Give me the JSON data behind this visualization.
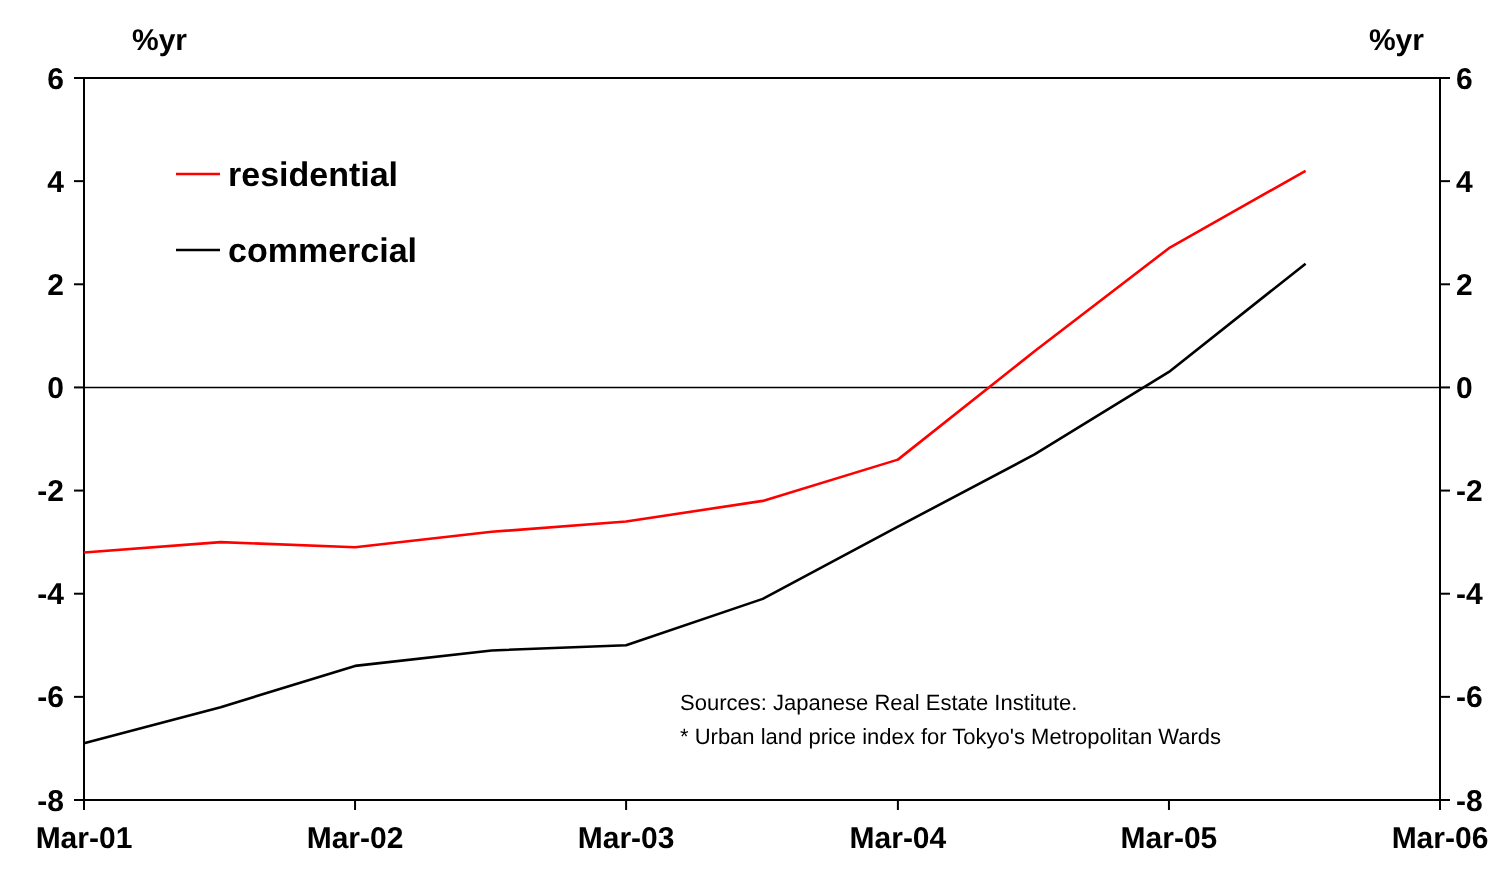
{
  "chart_data": {
    "type": "line",
    "ylabel": "%yr",
    "y2label": "%yr",
    "x": [
      "2001-03",
      "2001-09",
      "2002-03",
      "2002-09",
      "2003-03",
      "2003-09",
      "2004-03",
      "2004-09",
      "2005-03",
      "2005-09"
    ],
    "series": [
      {
        "name": "residential",
        "color": "#ff0000",
        "values": [
          -3.2,
          -3.0,
          -3.1,
          -2.8,
          -2.6,
          -2.2,
          -1.4,
          0.7,
          2.7,
          4.2
        ]
      },
      {
        "name": "commercial",
        "color": "#000000",
        "values": [
          -6.9,
          -6.2,
          -5.4,
          -5.1,
          -5.0,
          -4.1,
          -2.7,
          -1.3,
          0.3,
          2.4
        ]
      }
    ],
    "xlim": [
      "2001-03",
      "2006-03"
    ],
    "xticks": [
      {
        "value": "2001-03",
        "label": "Mar-01"
      },
      {
        "value": "2002-03",
        "label": "Mar-02"
      },
      {
        "value": "2003-03",
        "label": "Mar-03"
      },
      {
        "value": "2004-03",
        "label": "Mar-04"
      },
      {
        "value": "2005-03",
        "label": "Mar-05"
      },
      {
        "value": "2006-03",
        "label": "Mar-06"
      }
    ],
    "ylim": [
      -8,
      6
    ],
    "yticks": [
      -8,
      -6,
      -4,
      -2,
      0,
      2,
      4,
      6
    ],
    "y2lim": [
      -8,
      6
    ],
    "y2ticks": [
      -8,
      -6,
      -4,
      -2,
      0,
      2,
      4,
      6
    ],
    "ref_lines": [
      {
        "axis": "y",
        "value": 0,
        "color": "#000000"
      }
    ],
    "legend": "top left",
    "grid": false,
    "marker": "none",
    "line_style": "solid",
    "annotations": [
      "Sources: Japanese Real Estate Institute.",
      "* Urban land price index for Tokyo's Metropolitan Wards"
    ]
  }
}
